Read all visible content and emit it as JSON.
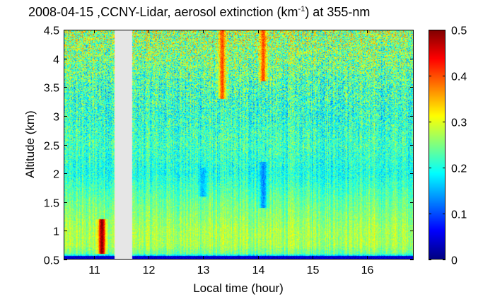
{
  "title": {
    "prefix": "2008-04-15 ,CCNY-Lidar, aerosol extinction (km",
    "superscript": "-1",
    "suffix": ") at 355-nm"
  },
  "chart_data": {
    "type": "heatmap",
    "title": "2008-04-15 ,CCNY-Lidar, aerosol extinction (km-1) at 355-nm",
    "xlabel": "Local time (hour)",
    "ylabel": "Altitude (km)",
    "xlim": [
      10.45,
      16.85
    ],
    "ylim": [
      0.5,
      4.5
    ],
    "x_ticks": [
      11,
      12,
      13,
      14,
      15,
      16
    ],
    "y_ticks": [
      0.5,
      1,
      1.5,
      2,
      2.5,
      3,
      3.5,
      4,
      4.5
    ],
    "y_tick_labels": [
      "0.5",
      "1",
      "1.5",
      "2",
      "2.5",
      "3",
      "3.5",
      "4",
      "4.5"
    ],
    "colorbar": {
      "colormap": "jet",
      "range": [
        0,
        0.5
      ],
      "ticks": [
        0,
        0.1,
        0.2,
        0.3,
        0.4,
        0.5
      ],
      "tick_labels": [
        "0",
        "0.1",
        "0.2",
        "0.3",
        "0.4",
        "0.5"
      ]
    },
    "no_data_intervals": [
      [
        11.38,
        11.7
      ]
    ],
    "no_data_color": "#e6e6e6",
    "extinction_profile": {
      "altitude_km": [
        0.5,
        0.6,
        0.75,
        1.0,
        1.5,
        2.0,
        2.5,
        3.0,
        3.5,
        4.0,
        4.5
      ],
      "value": [
        0.02,
        0.24,
        0.27,
        0.27,
        0.24,
        0.2,
        0.22,
        0.21,
        0.22,
        0.25,
        0.27
      ]
    },
    "features": [
      {
        "time": 11.15,
        "alt": [
          0.6,
          1.2
        ],
        "value": 0.5
      },
      {
        "time": 13.35,
        "alt": [
          3.3,
          4.5
        ],
        "value": 0.4
      },
      {
        "time": 14.1,
        "alt": [
          3.6,
          4.5
        ],
        "value": 0.4
      },
      {
        "time": 14.1,
        "alt": [
          1.4,
          2.2
        ],
        "value": 0.13
      },
      {
        "time": 13.0,
        "alt": [
          1.6,
          2.1
        ],
        "value": 0.15
      }
    ],
    "grid": false
  }
}
